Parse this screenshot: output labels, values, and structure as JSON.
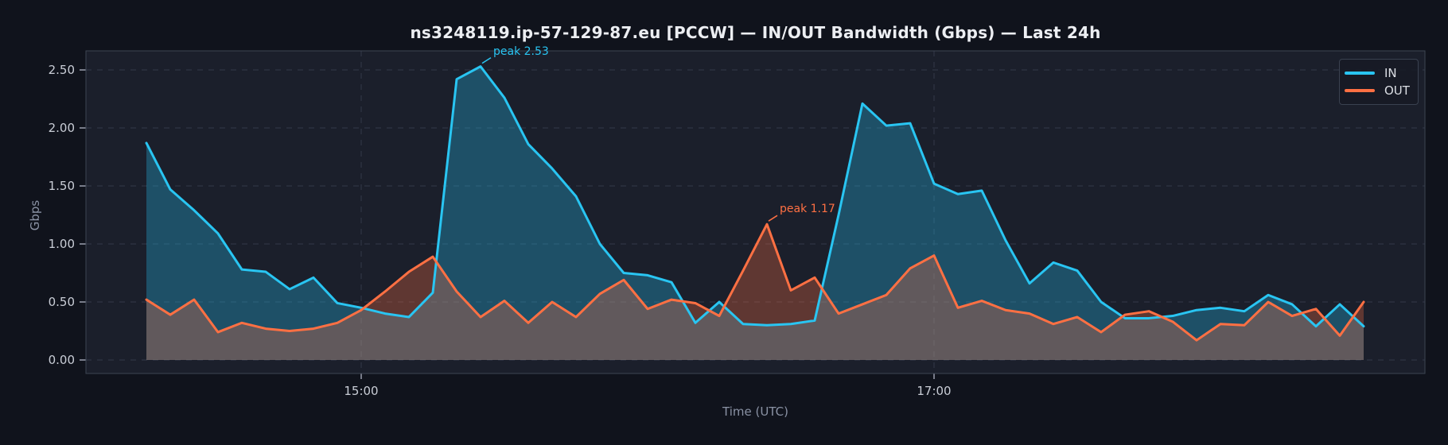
{
  "window": {
    "kind": "network-monitoring-chart"
  },
  "chart_data": {
    "type": "line",
    "title": "ns3248119.ip-57-129-87.eu [PCCW] — IN/OUT Bandwidth (Gbps) — Last 24h",
    "xlabel": "Time (UTC)",
    "ylabel": "Gbps",
    "x_start_time": "14:15",
    "x_interval_minutes": 5,
    "point_count": 52,
    "ylim": [
      -0.12,
      2.67
    ],
    "grid": "dashed",
    "legend_position": "upper right",
    "xticks": [
      {
        "label": "15:00",
        "index": 9
      },
      {
        "label": "17:00",
        "index": 33
      }
    ],
    "yticks": [
      {
        "label": "0.00",
        "value": 0.0
      },
      {
        "label": "0.50",
        "value": 0.5
      },
      {
        "label": "1.00",
        "value": 1.0
      },
      {
        "label": "1.50",
        "value": 1.5
      },
      {
        "label": "2.00",
        "value": 2.0
      },
      {
        "label": "2.50",
        "value": 2.5
      }
    ],
    "series": [
      {
        "name": "IN",
        "color": "#29c5f2",
        "fill_opacity": 0.3,
        "values": [
          1.87,
          1.47,
          1.29,
          1.09,
          0.78,
          0.76,
          0.61,
          0.71,
          0.49,
          0.45,
          0.4,
          0.37,
          0.58,
          2.42,
          2.53,
          2.26,
          1.86,
          1.65,
          1.41,
          1.0,
          0.75,
          0.73,
          0.67,
          0.32,
          0.5,
          0.31,
          0.3,
          0.31,
          0.34,
          1.25,
          2.21,
          2.02,
          2.04,
          1.52,
          1.43,
          1.46,
          1.03,
          0.66,
          0.84,
          0.77,
          0.5,
          0.36,
          0.36,
          0.38,
          0.43,
          0.45,
          0.42,
          0.56,
          0.48,
          0.29,
          0.48,
          0.29
        ]
      },
      {
        "name": "OUT",
        "color": "#ff7043",
        "fill_opacity": 0.3,
        "values": [
          0.52,
          0.39,
          0.52,
          0.24,
          0.32,
          0.27,
          0.25,
          0.27,
          0.32,
          0.43,
          0.59,
          0.76,
          0.89,
          0.59,
          0.37,
          0.51,
          0.32,
          0.5,
          0.37,
          0.57,
          0.69,
          0.44,
          0.52,
          0.49,
          0.38,
          0.77,
          1.17,
          0.6,
          0.71,
          0.4,
          0.48,
          0.56,
          0.79,
          0.9,
          0.45,
          0.51,
          0.43,
          0.4,
          0.31,
          0.37,
          0.24,
          0.39,
          0.42,
          0.33,
          0.17,
          0.31,
          0.3,
          0.5,
          0.38,
          0.44,
          0.21,
          0.5
        ]
      }
    ],
    "annotations": [
      {
        "id": "in-peak",
        "series": "IN",
        "label": "peak 2.53",
        "value": 2.53,
        "index": 14
      },
      {
        "id": "out-peak",
        "series": "OUT",
        "label": "peak 1.17",
        "value": 1.17,
        "index": 26
      }
    ]
  },
  "legend": {
    "entries": [
      {
        "label": "IN",
        "color": "#29c5f2"
      },
      {
        "label": "OUT",
        "color": "#ff7043"
      }
    ]
  },
  "colors": {
    "outer_bg": "#10131c",
    "plot_bg": "#1b1f2b",
    "grid": "#333948",
    "border": "#3d4452",
    "tick_mark": "#9aa0ae",
    "tick_text": "#c9cdd6",
    "muted_text": "#8a92a4",
    "title_text": "#eceef2",
    "in_accent": "#29c5f2",
    "out_accent": "#ff7043"
  }
}
